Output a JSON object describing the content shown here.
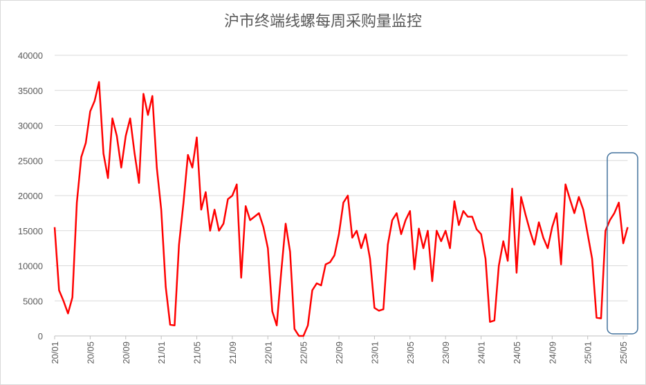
{
  "chart_data": {
    "type": "line",
    "title": "沪市终端线螺每周采购量监控",
    "categories": [
      "20/01",
      null,
      null,
      null,
      null,
      null,
      null,
      null,
      "20/05",
      null,
      null,
      null,
      null,
      null,
      null,
      null,
      "20/09",
      null,
      null,
      null,
      null,
      null,
      null,
      null,
      "21/01",
      null,
      null,
      null,
      null,
      null,
      null,
      null,
      "21/05",
      null,
      null,
      null,
      null,
      null,
      null,
      null,
      "21/09",
      null,
      null,
      null,
      null,
      null,
      null,
      null,
      "22/01",
      null,
      null,
      null,
      null,
      null,
      null,
      null,
      "22/05",
      null,
      null,
      null,
      null,
      null,
      null,
      null,
      "22/09",
      null,
      null,
      null,
      null,
      null,
      null,
      null,
      "23/01",
      null,
      null,
      null,
      null,
      null,
      null,
      null,
      "23/05",
      null,
      null,
      null,
      null,
      null,
      null,
      null,
      "23/09",
      null,
      null,
      null,
      null,
      null,
      null,
      null,
      "24/01",
      null,
      null,
      null,
      null,
      null,
      null,
      null,
      "24/05",
      null,
      null,
      null,
      null,
      null,
      null,
      null,
      "24/09",
      null,
      null,
      null,
      null,
      null,
      null,
      null,
      "25/01",
      null,
      null,
      null,
      null,
      null,
      null,
      null,
      "25/05",
      null
    ],
    "series": [
      {
        "color": "#ff0000",
        "values": [
          15500,
          6500,
          5000,
          3200,
          5500,
          19000,
          25500,
          27500,
          32000,
          33500,
          36200,
          26000,
          22500,
          31000,
          28500,
          24000,
          28500,
          31000,
          26000,
          21800,
          34500,
          31500,
          34200,
          24000,
          18000,
          7000,
          1600,
          1500,
          13000,
          19000,
          25800,
          24000,
          28300,
          18000,
          20500,
          15000,
          18000,
          15000,
          16000,
          19500,
          20000,
          21600,
          8300,
          18500,
          16500,
          17000,
          17500,
          15500,
          12500,
          3500,
          1500,
          9000,
          16000,
          12000,
          1000,
          0,
          0,
          1500,
          6500,
          7500,
          7200,
          10200,
          10500,
          11500,
          14500,
          19000,
          20000,
          14000,
          15000,
          12500,
          14500,
          11000,
          4000,
          3600,
          3800,
          13000,
          16500,
          17500,
          14500,
          16500,
          17800,
          9500,
          15300,
          12500,
          15000,
          7800,
          15000,
          13500,
          15000,
          12500,
          19200,
          15800,
          17800,
          17000,
          17000,
          15200,
          14500,
          11000,
          2000,
          2200,
          10000,
          13500,
          10700,
          21000,
          9000,
          19800,
          17300,
          15000,
          13000,
          16200,
          14000,
          12500,
          15500,
          17500,
          10200,
          21600,
          19500,
          17500,
          19800,
          18000,
          14500,
          11000,
          2600,
          2500,
          15000,
          16500,
          17500,
          19000,
          13200,
          15500
        ]
      }
    ],
    "ylim": [
      0,
      40000
    ],
    "yticks": [
      0,
      5000,
      10000,
      15000,
      20000,
      25000,
      30000,
      35000,
      40000
    ],
    "grid": true
  }
}
